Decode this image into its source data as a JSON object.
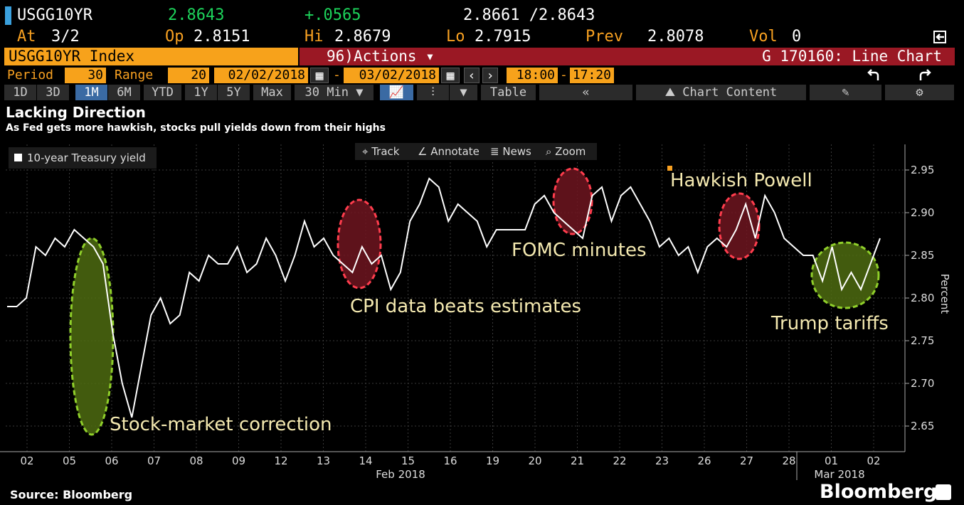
{
  "header": {
    "ticker": "USGG10YR",
    "last": "2.8643",
    "change": "+.0565",
    "bid_ask": "2.8661 /2.8643",
    "at_label": "At",
    "at_value": "3/2",
    "op_label": "Op",
    "op_value": "2.8151",
    "hi_label": "Hi",
    "hi_value": "2.8679",
    "lo_label": "Lo",
    "lo_value": "2.7915",
    "prev_label": "Prev",
    "prev_value": "2.8078",
    "vol_label": "Vol",
    "vol_value": "0"
  },
  "command_bar": {
    "index_label": "USGG10YR Index",
    "actions_code": "96)",
    "actions_label": "Actions ▾",
    "function_label": "G 170160: Line Chart"
  },
  "period_bar": {
    "period_label": "Period",
    "period_value": "30",
    "range_label": "Range",
    "range_value": "20",
    "start_date": "02/02/2018",
    "end_date": "03/02/2018",
    "start_time": "18:00",
    "end_time": "17:20",
    "dash": "-"
  },
  "toolbar": {
    "spans": [
      "1D",
      "3D",
      "1M",
      "6M",
      "YTD",
      "1Y",
      "5Y",
      "Max"
    ],
    "active_span": "1M",
    "interval": "30 Min ▼",
    "table_label": "Table",
    "collapse": "«",
    "chart_content": "Chart Content"
  },
  "chart_tools": {
    "track": "Track",
    "annotate": "Annotate",
    "news": "News",
    "zoom": "Zoom"
  },
  "chart_title": "Lacking Direction",
  "chart_subtitle": "As Fed gets more hawkish, stocks pull yields down from their highs",
  "legend_label": "10-year Treasury yield",
  "source": "Source: Bloomberg",
  "brand": "Bloomberg",
  "colors": {
    "amber": "#f7a21b",
    "red_bar": "#9a1824",
    "green_highlight": "#4d6b10",
    "red_highlight": "#6e1520",
    "line": "#ffffff"
  },
  "chart_data": {
    "type": "line",
    "ylabel": "Percent",
    "ylim": [
      2.62,
      2.98
    ],
    "yticks": [
      2.65,
      2.7,
      2.75,
      2.8,
      2.85,
      2.9,
      2.95
    ],
    "ytick_labels": [
      "2.65",
      "2.70",
      "2.75",
      "2.80",
      "2.85",
      "2.90",
      "2.95"
    ],
    "x_tick_labels": [
      "02",
      "05",
      "06",
      "07",
      "08",
      "09",
      "12",
      "13",
      "14",
      "15",
      "16",
      "19",
      "20",
      "21",
      "22",
      "23",
      "26",
      "27",
      "28",
      "01",
      "02"
    ],
    "month_labels": [
      "Feb 2018",
      "Mar 2018"
    ],
    "series": [
      {
        "name": "10-year Treasury yield",
        "values": [
          2.79,
          2.79,
          2.8,
          2.86,
          2.85,
          2.87,
          2.86,
          2.88,
          2.87,
          2.86,
          2.84,
          2.76,
          2.7,
          2.66,
          2.72,
          2.78,
          2.8,
          2.77,
          2.78,
          2.83,
          2.82,
          2.85,
          2.84,
          2.84,
          2.86,
          2.83,
          2.84,
          2.87,
          2.85,
          2.82,
          2.85,
          2.89,
          2.86,
          2.87,
          2.85,
          2.84,
          2.83,
          2.86,
          2.84,
          2.85,
          2.81,
          2.83,
          2.89,
          2.91,
          2.94,
          2.93,
          2.89,
          2.91,
          2.9,
          2.89,
          2.86,
          2.88,
          2.88,
          2.88,
          2.88,
          2.91,
          2.92,
          2.9,
          2.89,
          2.88,
          2.87,
          2.92,
          2.93,
          2.89,
          2.92,
          2.93,
          2.91,
          2.89,
          2.86,
          2.87,
          2.85,
          2.86,
          2.83,
          2.86,
          2.87,
          2.86,
          2.88,
          2.91,
          2.87,
          2.92,
          2.9,
          2.87,
          2.86,
          2.85,
          2.85,
          2.82,
          2.86,
          2.81,
          2.83,
          2.81,
          2.84,
          2.87
        ]
      }
    ],
    "annotations": [
      {
        "label": "Stock-market correction",
        "highlight": "green"
      },
      {
        "label": "CPI data beats estimates",
        "highlight": "red"
      },
      {
        "label": "FOMC minutes",
        "highlight": "red"
      },
      {
        "label": "Hawkish Powell",
        "highlight": "red"
      },
      {
        "label": "Trump tariffs",
        "highlight": "green"
      }
    ],
    "grid": true
  }
}
